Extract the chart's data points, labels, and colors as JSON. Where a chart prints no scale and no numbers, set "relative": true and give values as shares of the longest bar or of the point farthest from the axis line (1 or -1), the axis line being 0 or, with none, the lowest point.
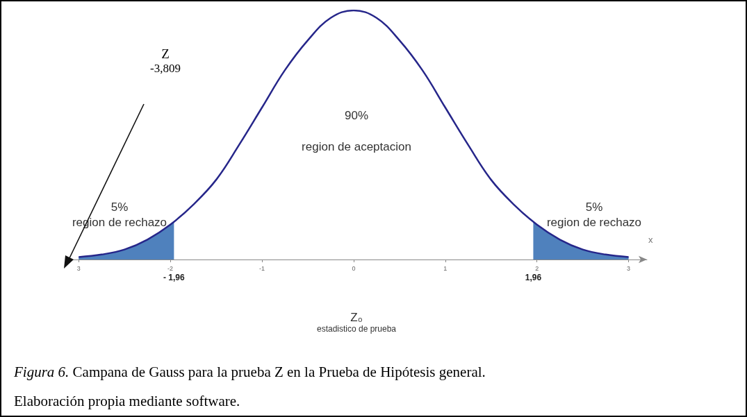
{
  "chart_data": {
    "type": "line",
    "relative": true,
    "xlabel": "x",
    "xlim": [
      -3.1,
      3.2
    ],
    "xticks": [
      {
        "value": -3,
        "label": "3"
      },
      -2,
      -1,
      0,
      1,
      2,
      3
    ],
    "series": [
      {
        "type": "area",
        "color": "#4f81bd",
        "x": [
          -3,
          -2.75,
          -2.5,
          -2.25,
          -1.96
        ],
        "values": [
          0.01,
          0.02,
          0.04,
          0.08,
          0.15
        ]
      },
      {
        "type": "area",
        "color": "#4f81bd",
        "x": [
          1.96,
          2.25,
          2.5,
          2.75,
          3
        ],
        "values": [
          0.15,
          0.08,
          0.04,
          0.02,
          0.01
        ]
      },
      {
        "color": "#26268a",
        "x": [
          -3,
          -2.75,
          -2.5,
          -2.25,
          -2,
          -1.75,
          -1.5,
          -1.25,
          -1,
          -0.75,
          -0.5,
          -0.25,
          0,
          0.25,
          0.5,
          0.75,
          1,
          1.25,
          1.5,
          1.75,
          2,
          2.25,
          2.5,
          2.75,
          3
        ],
        "values": [
          0.01,
          0.02,
          0.04,
          0.08,
          0.14,
          0.22,
          0.32,
          0.46,
          0.61,
          0.76,
          0.88,
          0.97,
          1,
          0.97,
          0.88,
          0.76,
          0.61,
          0.46,
          0.32,
          0.22,
          0.14,
          0.08,
          0.04,
          0.02,
          0.01
        ]
      }
    ],
    "marker": "none",
    "grid": false,
    "annotations": [
      {
        "text": "- 1,96",
        "x": -1.96,
        "y": 0
      },
      {
        "text": "1,96",
        "x": 1.96,
        "y": 0
      },
      "Z",
      "-3,809",
      "90%",
      "region de aceptacion",
      "5%",
      "region de rechazo",
      "5%",
      "region de rechazo",
      "Z₀",
      "estadistico de prueba",
      "Figura 6.",
      "Campana de Gauss para la prueba Z en la Prueba de Hipótesis general.",
      "Elaboración propia mediante software."
    ]
  }
}
